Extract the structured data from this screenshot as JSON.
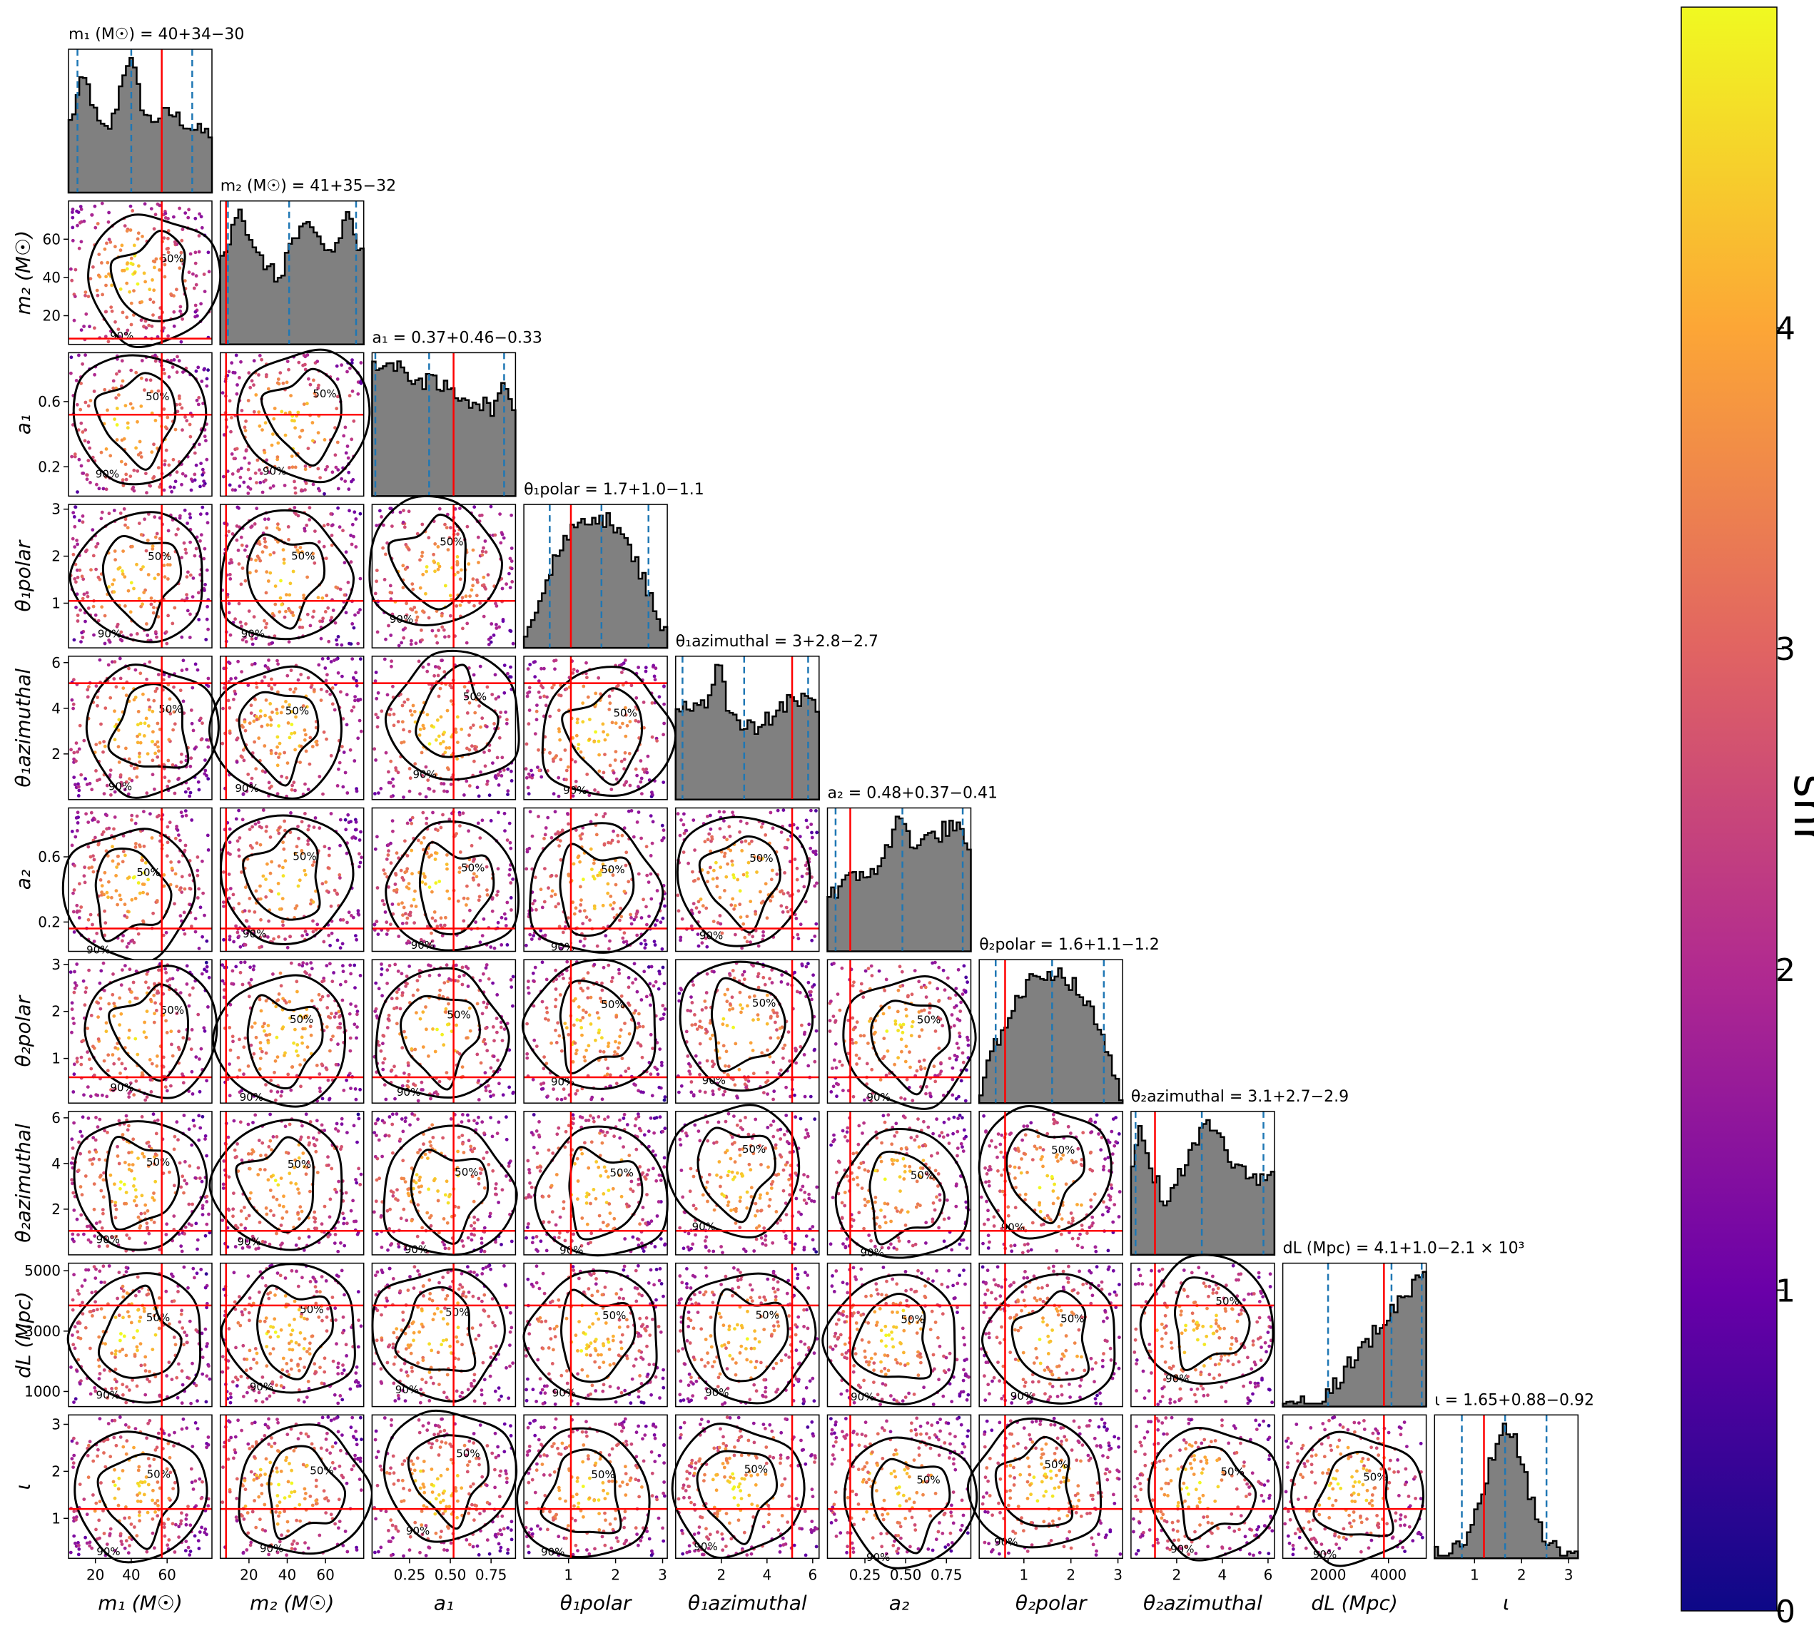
{
  "chart_data": {
    "type": "corner",
    "colorbar": {
      "label": "snr",
      "range": [
        0,
        5
      ],
      "ticks": [
        0,
        1,
        2,
        3,
        4
      ],
      "tick_labels": [
        "0",
        "1",
        "2",
        "3",
        "4"
      ],
      "colormap": "plasma",
      "colormap_stops": [
        "#0d0887",
        "#6a00a8",
        "#b12a90",
        "#e16462",
        "#fca636",
        "#f0f921"
      ]
    },
    "colors": {
      "histogram_fill": "#808080",
      "histogram_edge": "#000000",
      "quantile_lines": "#1f77b4",
      "injection_lines": "#ff0000",
      "contours": "#000000"
    },
    "contour_levels": [
      "50%",
      "90%"
    ],
    "params": [
      {
        "key": "m1",
        "xlabel": "m₁ (M☉)",
        "ylabel": "m₂ (M☉)",
        "title": "m₁ (M☉) = 40+34−30",
        "range": [
          5,
          85
        ],
        "ticks": [
          20,
          40,
          60
        ],
        "tick_labels": [
          "20",
          "40",
          "60"
        ],
        "quantiles": [
          10,
          40,
          74
        ],
        "injection": 57
      },
      {
        "key": "m2",
        "xlabel": "m₂ (M☉)",
        "ylabel": "m₂ (M☉)",
        "title": "m₂ (M☉) = 41+35−32",
        "range": [
          5,
          80
        ],
        "ticks": [
          20,
          40,
          60
        ],
        "tick_labels": [
          "20",
          "40",
          "60"
        ],
        "quantiles": [
          9,
          41,
          76
        ],
        "injection": 8
      },
      {
        "key": "a1",
        "xlabel": "a₁",
        "ylabel": "a₁",
        "title": "a₁ = 0.37+0.46−0.33",
        "range": [
          0.02,
          0.9
        ],
        "ticks": [
          0.25,
          0.5,
          0.75
        ],
        "tick_labels": [
          "0.25",
          "0.50",
          "0.75"
        ],
        "ytick_vals": [
          0.2,
          0.6
        ],
        "ytick_labels": [
          "0.2",
          "0.6"
        ],
        "quantiles": [
          0.04,
          0.37,
          0.83
        ],
        "injection": 0.52
      },
      {
        "key": "t1p",
        "xlabel": "θ₁polar",
        "ylabel": "θ₁polar",
        "title": "θ₁polar = 1.7+1.0−1.1",
        "range": [
          0.05,
          3.1
        ],
        "ticks": [
          1,
          2,
          3
        ],
        "tick_labels": [
          "1",
          "2",
          "3"
        ],
        "quantiles": [
          0.6,
          1.7,
          2.7
        ],
        "injection": 1.05
      },
      {
        "key": "t1a",
        "xlabel": "θ₁azimuthal",
        "ylabel": "θ₁azimuthal",
        "title": "θ₁azimuthal = 3+2.8−2.7",
        "range": [
          0.0,
          6.28
        ],
        "ticks": [
          2,
          4,
          6
        ],
        "tick_labels": [
          "2",
          "4",
          "6"
        ],
        "quantiles": [
          0.3,
          3.0,
          5.8
        ],
        "injection": 5.1
      },
      {
        "key": "a2",
        "xlabel": "a₂",
        "ylabel": "a₂",
        "title": "a₂ = 0.48+0.37−0.41",
        "range": [
          0.02,
          0.9
        ],
        "ticks": [
          0.25,
          0.5,
          0.75
        ],
        "tick_labels": [
          "0.25",
          "0.50",
          "0.75"
        ],
        "ytick_vals": [
          0.2,
          0.6
        ],
        "ytick_labels": [
          "0.2",
          "0.6"
        ],
        "quantiles": [
          0.07,
          0.48,
          0.85
        ],
        "injection": 0.16
      },
      {
        "key": "t2p",
        "xlabel": "θ₂polar",
        "ylabel": "θ₂polar",
        "title": "θ₂polar = 1.6+1.1−1.2",
        "range": [
          0.05,
          3.1
        ],
        "ticks": [
          1,
          2,
          3
        ],
        "tick_labels": [
          "1",
          "2",
          "3"
        ],
        "quantiles": [
          0.4,
          1.6,
          2.7
        ],
        "injection": 0.6
      },
      {
        "key": "t2a",
        "xlabel": "θ₂azimuthal",
        "ylabel": "θ₂azimuthal",
        "title": "θ₂azimuthal = 3.1+2.7−2.9",
        "range": [
          0.0,
          6.28
        ],
        "ticks": [
          2,
          4,
          6
        ],
        "tick_labels": [
          "2",
          "4",
          "6"
        ],
        "quantiles": [
          0.2,
          3.1,
          5.8
        ],
        "injection": 1.05
      },
      {
        "key": "dl",
        "xlabel": "dL (Mpc)",
        "ylabel": "dL (Mpc)",
        "title": "dL (Mpc) = 4.1+1.0−2.1 × 10³",
        "range": [
          500,
          5250
        ],
        "ticks": [
          2000,
          4000
        ],
        "tick_labels": [
          "2000",
          "4000"
        ],
        "ytick_vals": [
          1000,
          3000,
          5000
        ],
        "ytick_labels": [
          "1000",
          "3000",
          "5000"
        ],
        "quantiles": [
          2000,
          4100,
          5100
        ],
        "injection": 3850
      },
      {
        "key": "iota",
        "xlabel": "ι",
        "ylabel": "ι",
        "title": "ι = 1.65+0.88−0.92",
        "range": [
          0.15,
          3.2
        ],
        "ticks": [
          1,
          2,
          3
        ],
        "tick_labels": [
          "1",
          "2",
          "3"
        ],
        "quantiles": [
          0.73,
          1.65,
          2.53
        ],
        "injection": 1.2
      }
    ]
  }
}
